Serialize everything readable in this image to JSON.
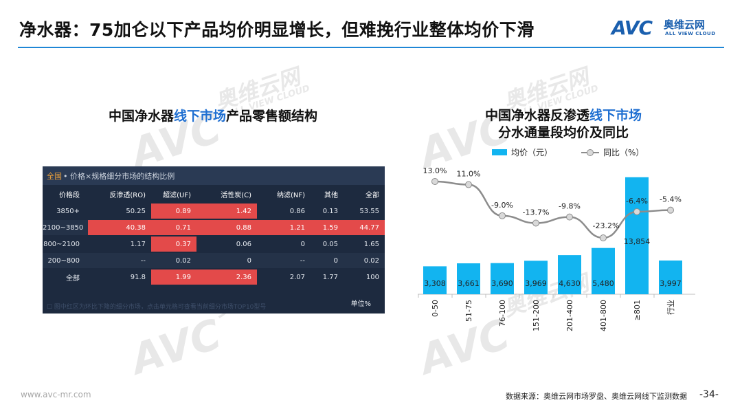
{
  "header": {
    "title": "净水器：75加仑以下产品均价明显增长，但难挽行业整体均价下滑"
  },
  "logo": {
    "mark": "AVC",
    "brand": "奥维云网",
    "sub": "ALL VIEW CLOUD",
    "color": "#1a5fae"
  },
  "watermark": {
    "mark": "AVC",
    "brand": "奥维云网",
    "sub": "ALL VIEW CLOUD"
  },
  "left_panel": {
    "title_pre": "中国净水器",
    "title_hl": "线下市场",
    "title_post": "产品零售额结构",
    "table_scope": "全国",
    "table_caption": " • 价格×规格细分市场的结构比例",
    "footnote": "☐ 图中红区为环比下降的细分市场，点击单元格可查看当前细分市场TOP10型号",
    "unit": "单位%",
    "highlight_color": "#e34a4a",
    "columns": [
      "价格段",
      "反渗透(RO)",
      "超滤(UF)",
      "活性炭(C)",
      "纳滤(NF)",
      "其他",
      "全部"
    ],
    "rows": [
      {
        "label": "3850+",
        "cells": [
          "50.25",
          "0.89",
          "1.42",
          "0.86",
          "0.13",
          "53.55"
        ],
        "red": [
          false,
          true,
          true,
          false,
          false,
          false
        ]
      },
      {
        "label": "2100~3850",
        "cells": [
          "40.38",
          "0.71",
          "0.88",
          "1.21",
          "1.59",
          "44.77"
        ],
        "red": [
          true,
          true,
          true,
          true,
          true,
          true
        ]
      },
      {
        "label": "800~2100",
        "cells": [
          "1.17",
          "0.37",
          "0.06",
          "0",
          "0.05",
          "1.65"
        ],
        "red": [
          false,
          true,
          false,
          false,
          false,
          false
        ]
      },
      {
        "label": "200~800",
        "cells": [
          "--",
          "0.02",
          "0",
          "--",
          "0",
          "0.02"
        ],
        "red": [
          false,
          false,
          false,
          false,
          false,
          false
        ]
      },
      {
        "label": "全部",
        "cells": [
          "91.8",
          "1.99",
          "2.36",
          "2.07",
          "1.77",
          "100"
        ],
        "red": [
          false,
          true,
          true,
          false,
          false,
          false
        ]
      }
    ]
  },
  "right_panel": {
    "title_line1_pre": "中国净水器反渗透",
    "title_line1_hl": "线下市场",
    "title_line2": "分水通量段均价及同比"
  },
  "chart_data": {
    "type": "bar",
    "categories": [
      "0-50",
      "51-75",
      "76-100",
      "151-200",
      "201-400",
      "401-800",
      "≥801",
      "行业"
    ],
    "series": [
      {
        "name": "均价（元）",
        "kind": "bar",
        "color": "#12b4f0",
        "values": [
          3308,
          3661,
          3690,
          3969,
          4630,
          5480,
          13854,
          3997
        ],
        "labels": [
          "3,308",
          "3,661",
          "3,690",
          "3,969",
          "4,630",
          "5,480",
          "13,854",
          "3,997"
        ]
      },
      {
        "name": "同比（%）",
        "kind": "line",
        "color": "#8c8c8c",
        "values": [
          13.0,
          11.0,
          -9.0,
          -13.7,
          -9.8,
          -23.2,
          -6.4,
          -5.4
        ],
        "labels": [
          "13.0%",
          "11.0%",
          "-9.0%",
          "-13.7%",
          "-9.8%",
          "-23.2%",
          "-6.4%",
          "-5.4%"
        ]
      }
    ],
    "legend_position": "top",
    "grid": false
  },
  "footer": {
    "url": "www.avc-mr.com",
    "source": "数据来源：奥维云网市场罗盘、奥维云网线下监测数据",
    "page": "-34-"
  }
}
